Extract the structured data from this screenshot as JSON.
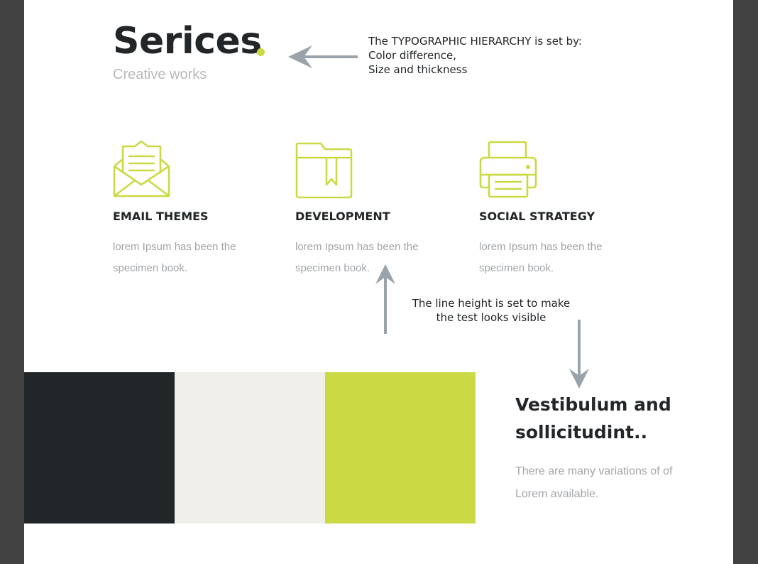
{
  "header": {
    "title": "Serices",
    "subtitle": "Creative works"
  },
  "annotations": {
    "hierarchy": {
      "line1": "The TYPOGRAPHIC HIERARCHY is set by:",
      "line2": "Color difference,",
      "line3": "Size and thickness"
    },
    "line_height": {
      "line1": "The line height is set to make",
      "line2": "the test looks visible"
    }
  },
  "services": [
    {
      "icon": "envelope-icon",
      "title": "EMAIL THEMES",
      "desc_line1": "lorem Ipsum has been the",
      "desc_line2": "specimen book."
    },
    {
      "icon": "folder-icon",
      "title": "DEVELOPMENT",
      "desc_line1": "lorem Ipsum has been the",
      "desc_line2": "specimen book."
    },
    {
      "icon": "printer-icon",
      "title": "SOCIAL STRATEGY",
      "desc_line1": "lorem Ipsum has been the",
      "desc_line2": "specimen book."
    }
  ],
  "palette": {
    "colors": [
      "#222629",
      "#f0efe9",
      "#cbd944"
    ]
  },
  "promo": {
    "title_line1": "Vestibulum and",
    "title_line2": "sollicitudint..",
    "text_line1": "There are many variations of of",
    "text_line2": "Lorem available."
  },
  "colors": {
    "accent": "#cbd944",
    "dark": "#222629",
    "muted": "#a0a4a8",
    "arrow": "#9aa3aa",
    "frame": "#414141"
  }
}
